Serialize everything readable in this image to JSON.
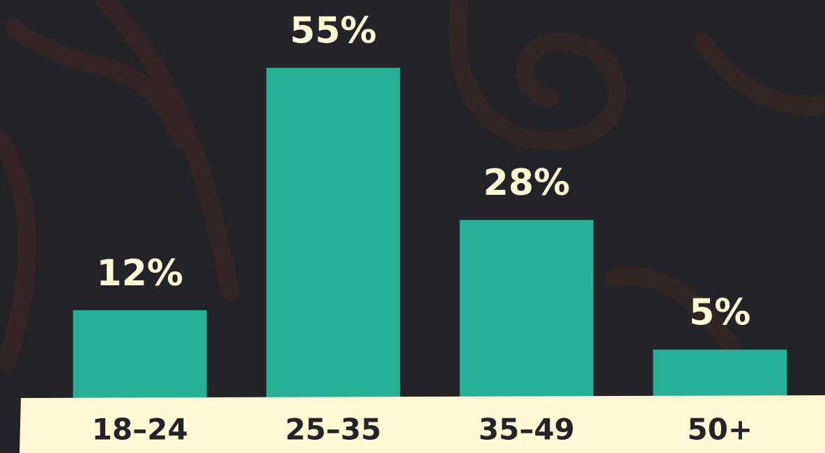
{
  "chart_data": {
    "type": "bar",
    "categories": [
      "18–24",
      "25–35",
      "35–49",
      "50+"
    ],
    "values": [
      12,
      55,
      28,
      5
    ],
    "value_labels": [
      "12%",
      "55%",
      "28%",
      "5%"
    ],
    "color": "#26b096"
  }
}
